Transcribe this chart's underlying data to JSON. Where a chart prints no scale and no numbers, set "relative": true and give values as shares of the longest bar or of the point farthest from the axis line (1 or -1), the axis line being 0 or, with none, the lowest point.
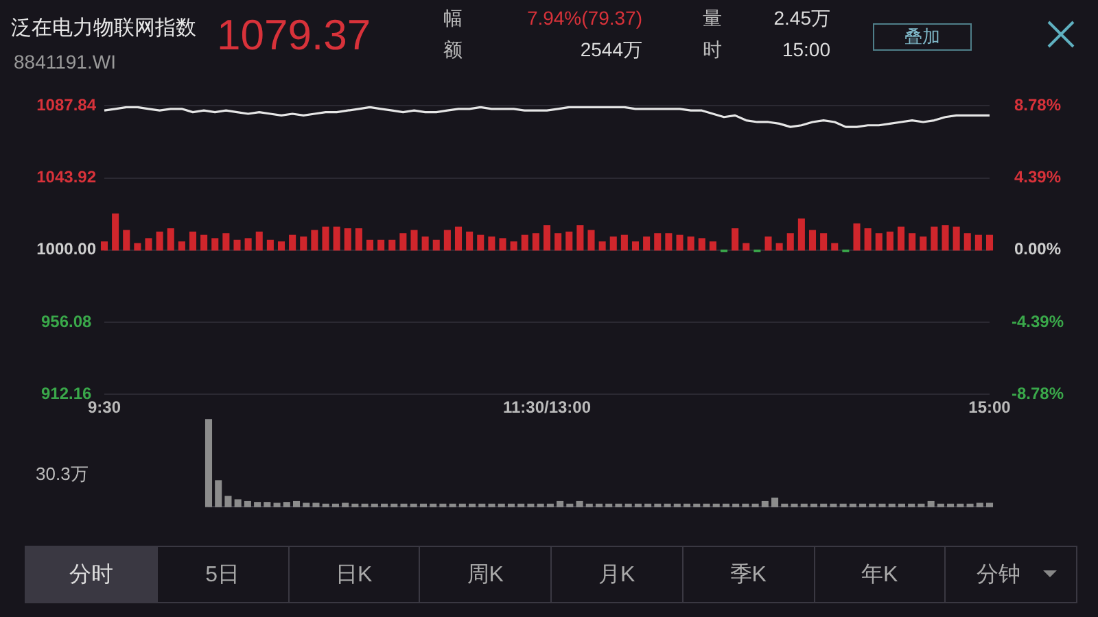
{
  "chart_data": [
    {
      "type": "bar",
      "title": "泛在电力物联网指数",
      "subtitle": "8841191.WI",
      "annotations": [
        "1079.37",
        "幅",
        "7.94%(79.37)",
        "额",
        "2544万",
        "量",
        "2.45万",
        "时",
        "15:00",
        "叠加",
        "分时",
        "5日",
        "日K",
        "周K",
        "月K",
        "季K",
        "年K",
        "分钟"
      ],
      "categories": [
        "9:30",
        null,
        null,
        null,
        null,
        null,
        null,
        null,
        null,
        null,
        null,
        null,
        null,
        null,
        null,
        null,
        null,
        null,
        null,
        null,
        null,
        null,
        null,
        null,
        null,
        null,
        null,
        null,
        null,
        null,
        null,
        null,
        null,
        null,
        null,
        null,
        null,
        null,
        null,
        null,
        "11:30/13:00",
        null,
        null,
        null,
        null,
        null,
        null,
        null,
        null,
        null,
        null,
        null,
        null,
        null,
        null,
        null,
        null,
        null,
        null,
        null,
        null,
        null,
        null,
        null,
        null,
        null,
        null,
        null,
        null,
        null,
        null,
        null,
        null,
        null,
        null,
        null,
        null,
        null,
        null,
        null,
        "15:00"
      ],
      "ylim": [
        912.16,
        1087.84
      ],
      "yticks": [
        {
          "value": 912.16,
          "label": "912.16"
        },
        {
          "value": 956.08,
          "label": "956.08"
        },
        {
          "value": 1000,
          "label": "1000.00"
        },
        {
          "value": 1043.92,
          "label": "1043.92"
        },
        {
          "value": 1087.84,
          "label": "1087.84"
        }
      ],
      "y2lim": [
        -8.78,
        8.78
      ],
      "y2ticks": [
        {
          "value": -8.78,
          "label": "-8.78%"
        },
        {
          "value": -4.39,
          "label": "-4.39%"
        },
        {
          "value": 0,
          "label": "0.00%"
        },
        {
          "value": 4.39,
          "label": "4.39%"
        },
        {
          "value": 8.78,
          "label": "8.78%"
        }
      ],
      "grid": "y",
      "legend": false,
      "series": [
        {
          "values": [
            5,
            22,
            12,
            4,
            7,
            11,
            13,
            5,
            11,
            9,
            7,
            10,
            6,
            7,
            11,
            6,
            5,
            9,
            8,
            12,
            14,
            14,
            13,
            13,
            6,
            6,
            6,
            10,
            12,
            8,
            6,
            12,
            14,
            11,
            9,
            8,
            7,
            5,
            9,
            10,
            15,
            10,
            11,
            15,
            12,
            5,
            8,
            9,
            5,
            8,
            10,
            10,
            9,
            8,
            7,
            5,
            -1,
            13,
            4,
            -1,
            8,
            4,
            10,
            19,
            12,
            10,
            4,
            -1,
            16,
            13,
            10,
            11,
            14,
            10,
            8,
            14,
            15,
            14,
            10,
            9,
            9
          ],
          "base": [
            1000,
            1000,
            1000,
            1000,
            1000,
            1000,
            1000,
            1000,
            1000,
            1000,
            1000,
            1000,
            1000,
            1000,
            1000,
            1000,
            1000,
            1000,
            1000,
            1000,
            1000,
            1000,
            1000,
            1000,
            1000,
            1000,
            1000,
            1000,
            1000,
            1000,
            1000,
            1000,
            1000,
            1000,
            1000,
            1000,
            1000,
            1000,
            1000,
            1000,
            1000,
            1000,
            1000,
            1000,
            1000,
            1000,
            1000,
            1000,
            1000,
            1000,
            1000,
            1000,
            1000,
            1000,
            1000,
            1000,
            1000,
            1000,
            1000,
            1000,
            1000,
            1000,
            1000,
            1000,
            1000,
            1000,
            1000,
            1000,
            1000,
            1000,
            1000,
            1000,
            1000,
            1000,
            1000,
            1000,
            1000,
            1000,
            1000,
            1000,
            1000
          ],
          "colors": [
            "#d0262c",
            "#d0262c",
            "#d0262c",
            "#d0262c",
            "#d0262c",
            "#d0262c",
            "#d0262c",
            "#d0262c",
            "#d0262c",
            "#d0262c",
            "#d0262c",
            "#d0262c",
            "#d0262c",
            "#d0262c",
            "#d0262c",
            "#d0262c",
            "#d0262c",
            "#d0262c",
            "#d0262c",
            "#d0262c",
            "#d0262c",
            "#d0262c",
            "#d0262c",
            "#d0262c",
            "#d0262c",
            "#d0262c",
            "#d0262c",
            "#d0262c",
            "#d0262c",
            "#d0262c",
            "#d0262c",
            "#d0262c",
            "#d0262c",
            "#d0262c",
            "#d0262c",
            "#d0262c",
            "#d0262c",
            "#d0262c",
            "#d0262c",
            "#d0262c",
            "#d0262c",
            "#d0262c",
            "#d0262c",
            "#d0262c",
            "#d0262c",
            "#d0262c",
            "#d0262c",
            "#d0262c",
            "#d0262c",
            "#d0262c",
            "#d0262c",
            "#d0262c",
            "#d0262c",
            "#d0262c",
            "#d0262c",
            "#d0262c",
            "#3aa84a",
            "#d0262c",
            "#d0262c",
            "#3aa84a",
            "#d0262c",
            "#d0262c",
            "#d0262c",
            "#d0262c",
            "#d0262c",
            "#d0262c",
            "#d0262c",
            "#3aa84a",
            "#d0262c",
            "#d0262c",
            "#d0262c",
            "#d0262c",
            "#d0262c",
            "#d0262c",
            "#d0262c",
            "#d0262c",
            "#d0262c",
            "#d0262c",
            "#d0262c",
            "#d0262c",
            "#d0262c"
          ]
        },
        {
          "type": "line",
          "color": "#e6e6e6",
          "values": [
            1085,
            1086,
            1087,
            1087,
            1086,
            1085,
            1086,
            1086,
            1084,
            1085,
            1084,
            1085,
            1084,
            1083,
            1084,
            1083,
            1082,
            1083,
            1082,
            1083,
            1084,
            1084,
            1085,
            1086,
            1087,
            1086,
            1085,
            1084,
            1085,
            1084,
            1084,
            1085,
            1086,
            1086,
            1087,
            1086,
            1086,
            1086,
            1085,
            1085,
            1085,
            1086,
            1087,
            1087,
            1087,
            1087,
            1087,
            1087,
            1086,
            1086,
            1086,
            1086,
            1086,
            1085,
            1085,
            1083,
            1081,
            1082,
            1079,
            1078,
            1078,
            1077,
            1075,
            1076,
            1078,
            1079,
            1078,
            1075,
            1075,
            1076,
            1076,
            1077,
            1078,
            1079,
            1078,
            1079,
            1081,
            1082,
            1082,
            1082,
            1082
          ]
        }
      ]
    },
    {
      "type": "bar",
      "relative": true,
      "legend": false,
      "annotations": [
        "30.3万"
      ],
      "color": "#8c8c8c",
      "categories": [
        null,
        null,
        null,
        null,
        null,
        null,
        null,
        null,
        null,
        null,
        null,
        null,
        null,
        null,
        null,
        null,
        null,
        null,
        null,
        null,
        null,
        null,
        null,
        null,
        null,
        null,
        null,
        null,
        null,
        null,
        null,
        null,
        null,
        null,
        null,
        null,
        null,
        null,
        null,
        null,
        null,
        null,
        null,
        null,
        null,
        null,
        null,
        null,
        null,
        null,
        null,
        null,
        null,
        null,
        null,
        null,
        null,
        null,
        null,
        null,
        null,
        null,
        null,
        null,
        null,
        null,
        null,
        null,
        null,
        null,
        null,
        null,
        null,
        null,
        null,
        null,
        null,
        null,
        null,
        null,
        null
      ],
      "values": [
        1,
        0.3,
        0.12,
        0.08,
        0.06,
        0.05,
        0.05,
        0.04,
        0.05,
        0.06,
        0.04,
        0.04,
        0.03,
        0.03,
        0.04,
        0.03,
        0.03,
        0.03,
        0.03,
        0.03,
        0.03,
        0.03,
        0.03,
        0.03,
        0.03,
        0.03,
        0.03,
        0.03,
        0.03,
        0.03,
        0.03,
        0.03,
        0.03,
        0.03,
        0.03,
        0.03,
        0.06,
        0.03,
        0.06,
        0.03,
        0.03,
        0.03,
        0.03,
        0.03,
        0.03,
        0.03,
        0.03,
        0.03,
        0.03,
        0.03,
        0.03,
        0.03,
        0.03,
        0.03,
        0.03,
        0.03,
        0.03,
        0.06,
        0.1,
        0.03,
        0.03,
        0.03,
        0.03,
        0.03,
        0.03,
        0.03,
        0.03,
        0.03,
        0.03,
        0.03,
        0.03,
        0.03,
        0.03,
        0.03,
        0.06,
        0.03,
        0.03,
        0.03,
        0.03,
        0.04,
        0.04
      ]
    }
  ]
}
